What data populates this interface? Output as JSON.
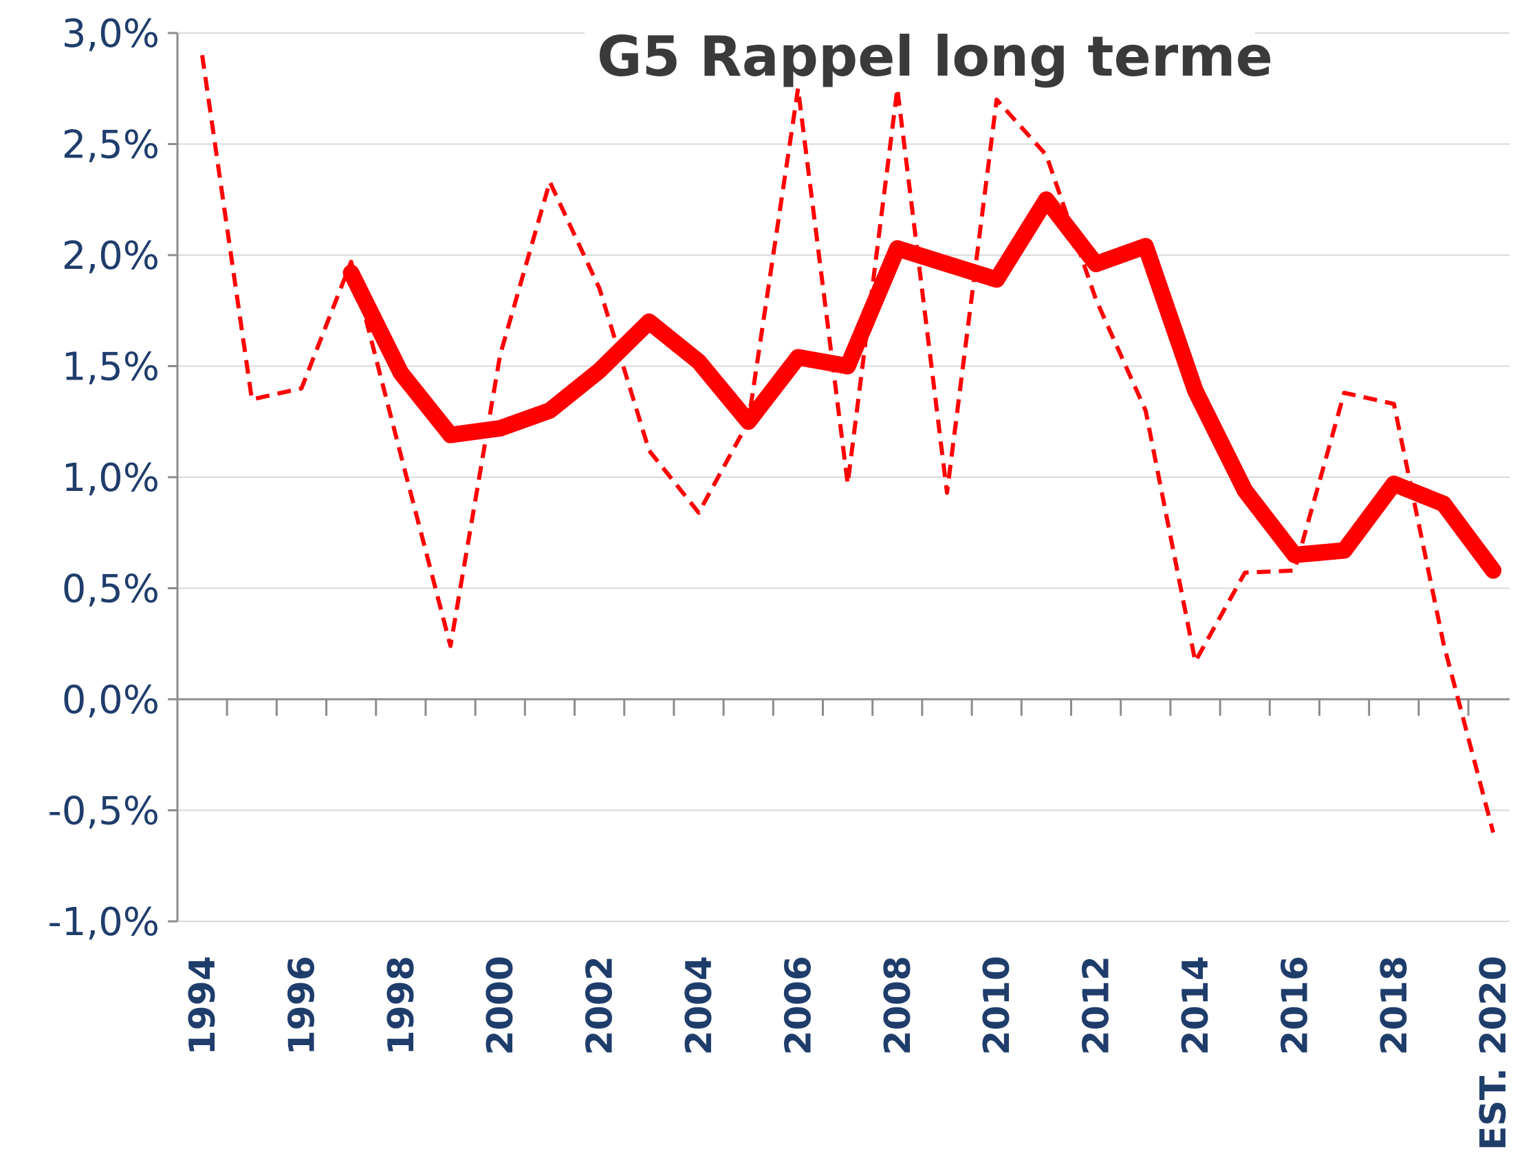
{
  "chart_data": {
    "type": "line",
    "title": "G5   Rappel long terme",
    "xlabel": "",
    "ylabel": "",
    "ylim": [
      -1.0,
      3.0
    ],
    "y_ticks": [
      "3,0%",
      "2,5%",
      "2,0%",
      "1,5%",
      "1,0%",
      "0,5%",
      "0,0%",
      "-0,5%",
      "-1,0%"
    ],
    "x_tick_labels": [
      "1994",
      "1996",
      "1998",
      "2000",
      "2002",
      "2004",
      "2006",
      "2008",
      "2010",
      "2012",
      "2014",
      "2016",
      "2018",
      "EST. 2020"
    ],
    "grid": true,
    "legend": "none",
    "x": [
      1994,
      1995,
      1996,
      1997,
      1998,
      1999,
      2000,
      2001,
      2002,
      2003,
      2004,
      2005,
      2006,
      2007,
      2008,
      2009,
      2010,
      2011,
      2012,
      2013,
      2014,
      2015,
      2016,
      2017,
      2018,
      2019,
      2020
    ],
    "series": [
      {
        "style": "dashed",
        "color": "#ff0000",
        "values": [
          2.9,
          1.35,
          1.4,
          1.97,
          1.1,
          0.24,
          1.55,
          2.33,
          1.85,
          1.12,
          0.84,
          1.25,
          2.75,
          0.97,
          2.75,
          0.93,
          2.7,
          2.45,
          1.8,
          1.3,
          0.17,
          0.57,
          0.58,
          1.38,
          1.33,
          0.25,
          -0.6
        ]
      },
      {
        "style": "solid",
        "color": "#ff0000",
        "values": [
          null,
          null,
          null,
          1.92,
          1.47,
          1.19,
          1.22,
          1.3,
          1.48,
          1.7,
          1.52,
          1.25,
          1.54,
          1.5,
          2.03,
          1.96,
          1.89,
          2.25,
          1.96,
          2.04,
          1.39,
          0.94,
          0.65,
          0.67,
          0.97,
          0.88,
          0.58
        ]
      }
    ]
  }
}
